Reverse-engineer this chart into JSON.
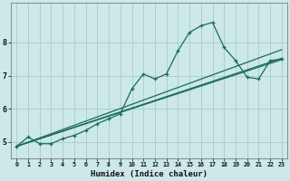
{
  "xlabel": "Humidex (Indice chaleur)",
  "bg_color": "#cce8e8",
  "grid_color": "#aacccc",
  "line_color": "#1a6b5a",
  "xlim": [
    -0.5,
    23.5
  ],
  "ylim": [
    4.5,
    9.2
  ],
  "yticks": [
    5,
    6,
    7,
    8
  ],
  "xticks": [
    0,
    1,
    2,
    3,
    4,
    5,
    6,
    7,
    8,
    9,
    10,
    11,
    12,
    13,
    14,
    15,
    16,
    17,
    18,
    19,
    20,
    21,
    22,
    23
  ],
  "series1_x": [
    0,
    1,
    2,
    3,
    4,
    5,
    6,
    7,
    8,
    9,
    10,
    11,
    12,
    13,
    14,
    15,
    16,
    17,
    18,
    19,
    20,
    21,
    22,
    23
  ],
  "series1_y": [
    4.87,
    5.15,
    4.95,
    4.95,
    5.1,
    5.2,
    5.35,
    5.55,
    5.7,
    5.85,
    6.6,
    7.05,
    6.9,
    7.05,
    7.75,
    8.3,
    8.5,
    8.6,
    7.85,
    7.45,
    6.95,
    6.9,
    7.45,
    7.5
  ],
  "trend1_x": [
    0,
    23
  ],
  "trend1_y": [
    4.87,
    7.78
  ],
  "trend2_x": [
    0,
    23
  ],
  "trend2_y": [
    4.87,
    7.52
  ],
  "trend3_x": [
    0,
    23
  ],
  "trend3_y": [
    4.87,
    7.48
  ]
}
